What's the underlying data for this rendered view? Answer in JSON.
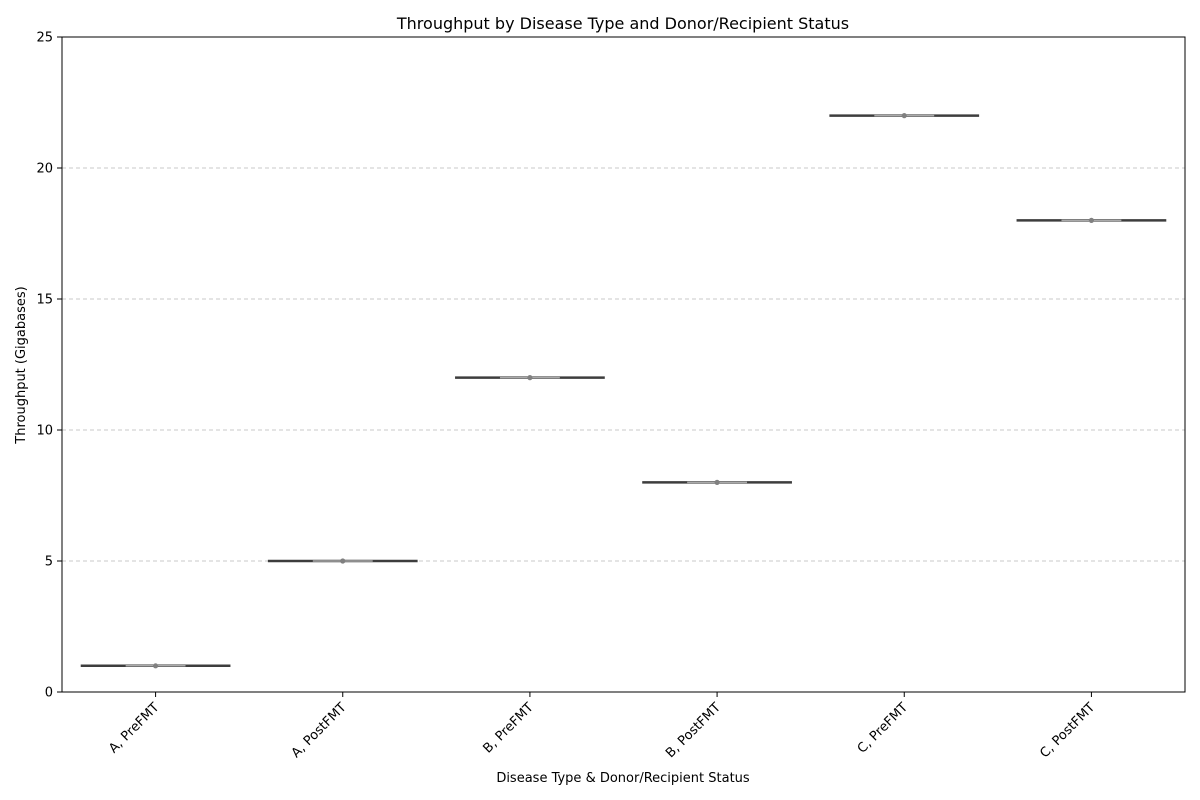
{
  "chart_data": {
    "type": "box",
    "title": "Throughput by Disease Type and Donor/Recipient Status",
    "xlabel": "Disease Type & Donor/Recipient Status",
    "ylabel": "Throughput (Gigabases)",
    "ylim": [
      0,
      25
    ],
    "yticks": [
      0,
      5,
      10,
      15,
      20,
      25
    ],
    "grid": "y, dashed",
    "categories": [
      "A, PreFMT",
      "A, PostFMT",
      "B, PreFMT",
      "B, PostFMT",
      "C, PreFMT",
      "C, PostFMT"
    ],
    "values": [
      1,
      5,
      12,
      8,
      22,
      18
    ],
    "colors": {
      "box_line": "#3d3d3d",
      "median_line": "#aaaaaa",
      "point": "#808080",
      "grid": "#c8c8c8"
    }
  }
}
